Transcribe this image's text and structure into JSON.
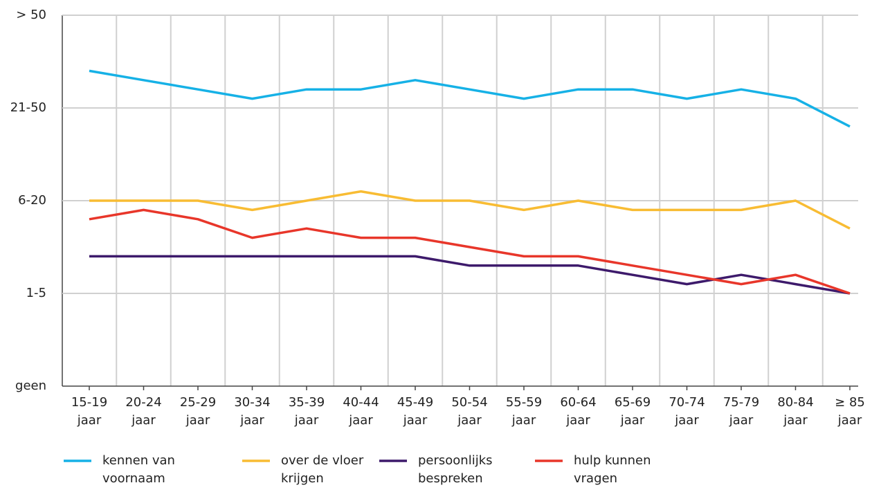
{
  "chart_data": {
    "type": "line",
    "categories": [
      "15-19 jaar",
      "20-24 jaar",
      "25-29 jaar",
      "30-34 jaar",
      "35-39 jaar",
      "40-44 jaar",
      "45-49 jaar",
      "50-54 jaar",
      "55-59 jaar",
      "60-64 jaar",
      "65-69 jaar",
      "70-74 jaar",
      "75-79 jaar",
      "80-84 jaar",
      "≥ 85 jaar"
    ],
    "series": [
      {
        "name": "kennen van voornaam",
        "color": "#16b1e6",
        "values": [
          3.4,
          3.3,
          3.2,
          3.1,
          3.2,
          3.2,
          3.3,
          3.2,
          3.1,
          3.2,
          3.2,
          3.1,
          3.2,
          3.1,
          2.8
        ]
      },
      {
        "name": "over de vloer krijgen",
        "color": "#f8bc33",
        "values": [
          2,
          2,
          2,
          1.9,
          2,
          2.1,
          2,
          2,
          1.9,
          2,
          1.9,
          1.9,
          1.9,
          2,
          1.7
        ]
      },
      {
        "name": "persoonlijks bespreken",
        "color": "#3d1a6b",
        "values": [
          1.4,
          1.4,
          1.4,
          1.4,
          1.4,
          1.4,
          1.4,
          1.3,
          1.3,
          1.3,
          1.2,
          1.1,
          1.2,
          1.1,
          1
        ]
      },
      {
        "name": "hulp kunnen vragen",
        "color": "#e8362a",
        "values": [
          1.8,
          1.9,
          1.8,
          1.6,
          1.7,
          1.6,
          1.6,
          1.5,
          1.4,
          1.4,
          1.3,
          1.2,
          1.1,
          1.2,
          1
        ]
      }
    ],
    "ylim": [
      0,
      4
    ],
    "yticks": [
      {
        "value": 0,
        "label": "geen"
      },
      {
        "value": 1,
        "label": "1-5"
      },
      {
        "value": 2,
        "label": "6-20"
      },
      {
        "value": 3,
        "label": "21-50"
      },
      {
        "value": 4,
        "label": "> 50"
      }
    ],
    "grid": true
  }
}
